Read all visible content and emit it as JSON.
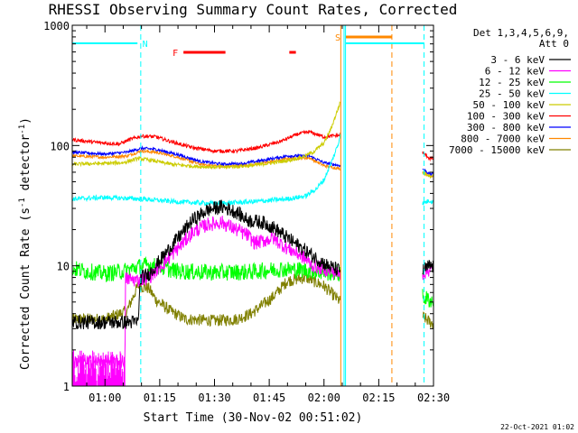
{
  "chart_data": {
    "type": "line",
    "title": "RHESSI Observing Summary Count Rates, Corrected",
    "xlabel": "Start Time (30-Nov-02 00:51:02)",
    "ylabel": "Corrected Count Rate (s-1 detector-1)",
    "ylabel_parts": [
      "Corrected Count Rate (s",
      "-1",
      " detector",
      "-1",
      ")"
    ],
    "yscale": "log",
    "ylim": [
      1,
      1000
    ],
    "xlim": [
      "00:51:02",
      "02:30:00"
    ],
    "xtick_labels": [
      {
        "t": 60,
        "label": "01:00"
      },
      {
        "t": 75,
        "label": "01:15"
      },
      {
        "t": 90,
        "label": "01:30"
      },
      {
        "t": 105,
        "label": "01:45"
      },
      {
        "t": 120,
        "label": "02:00"
      },
      {
        "t": 135,
        "label": "02:15"
      },
      {
        "t": 150,
        "label": "02:30"
      }
    ],
    "ytick_labels": [
      {
        "v": 1,
        "label": "1"
      },
      {
        "v": 10,
        "label": "10"
      },
      {
        "v": 100,
        "label": "100"
      },
      {
        "v": 1000,
        "label": "1000"
      }
    ],
    "detectors": "Det 1,3,4,5,6,9,",
    "attenuator": "Att 0",
    "legend_position": "top-right",
    "footer": "22-Oct-2021 01:02",
    "gap": {
      "start": "02:08:30",
      "end": "02:26:30"
    },
    "series": [
      {
        "name": "3 - 6 keV",
        "color": "#000000",
        "noise": 0.06,
        "points": [
          [
            51,
            3.4
          ],
          [
            69,
            3.4
          ],
          [
            69.8,
            8.0
          ],
          [
            72,
            8.5
          ],
          [
            76,
            12
          ],
          [
            80,
            17
          ],
          [
            84,
            24
          ],
          [
            88,
            29
          ],
          [
            92,
            31
          ],
          [
            96,
            28
          ],
          [
            99,
            24
          ],
          [
            103,
            23
          ],
          [
            106,
            21
          ],
          [
            110,
            17
          ],
          [
            114,
            14
          ],
          [
            117,
            12
          ],
          [
            119,
            11
          ],
          [
            121,
            10
          ],
          [
            123,
            9.5
          ],
          [
            124.5,
            9
          ]
        ],
        "post": [
          [
            147,
            9
          ],
          [
            149,
            10
          ],
          [
            150,
            9.8
          ]
        ]
      },
      {
        "name": "6 - 12 keV",
        "color": "#ff00ff",
        "noise": 0.06,
        "points": [
          [
            51,
            1.6
          ],
          [
            65.5,
            1.6
          ],
          [
            65.6,
            7.8
          ],
          [
            69,
            7.6
          ],
          [
            72,
            8
          ],
          [
            76,
            10.5
          ],
          [
            80,
            14
          ],
          [
            84,
            19
          ],
          [
            88,
            22
          ],
          [
            92,
            23
          ],
          [
            96,
            20
          ],
          [
            99,
            18
          ],
          [
            101,
            15.5
          ],
          [
            103,
            16
          ],
          [
            106,
            17
          ],
          [
            110,
            14
          ],
          [
            114,
            12
          ],
          [
            117,
            10
          ],
          [
            120,
            9.5
          ],
          [
            124.5,
            8.5
          ]
        ],
        "post": [
          [
            147,
            8.6
          ],
          [
            149,
            9.4
          ],
          [
            150,
            9.2
          ]
        ]
      },
      {
        "name": "12 - 25 keV",
        "color": "#00ff00",
        "noise": 0.07,
        "points": [
          [
            51,
            9.5
          ],
          [
            55,
            9.0
          ],
          [
            60,
            8.6
          ],
          [
            65,
            9.0
          ],
          [
            69,
            9.8
          ],
          [
            72,
            10.2
          ],
          [
            76,
            9.6
          ],
          [
            80,
            9.0
          ],
          [
            90,
            8.8
          ],
          [
            100,
            8.9
          ],
          [
            108,
            9.4
          ],
          [
            115,
            9.2
          ],
          [
            120,
            8.8
          ],
          [
            124.5,
            8.6
          ]
        ],
        "post": [
          [
            147,
            5.5
          ],
          [
            149,
            5.2
          ],
          [
            150,
            5.0
          ]
        ]
      },
      {
        "name": "25 - 50 keV",
        "color": "#00ffff",
        "noise": 0.02,
        "points": [
          [
            51,
            36
          ],
          [
            60,
            37
          ],
          [
            70,
            36
          ],
          [
            80,
            34
          ],
          [
            90,
            33
          ],
          [
            100,
            34
          ],
          [
            110,
            36
          ],
          [
            115,
            38
          ],
          [
            118,
            44
          ],
          [
            120,
            52
          ],
          [
            122,
            72
          ],
          [
            124,
            105
          ],
          [
            124.5,
            130
          ]
        ],
        "post": [
          [
            147,
            33
          ],
          [
            149,
            35
          ],
          [
            150,
            34
          ]
        ]
      },
      {
        "name": "50 - 100 keV",
        "color": "#cccc00",
        "noise": 0.015,
        "points": [
          [
            51,
            70
          ],
          [
            60,
            71
          ],
          [
            65,
            72
          ],
          [
            69,
            78
          ],
          [
            72,
            76
          ],
          [
            78,
            70
          ],
          [
            85,
            67
          ],
          [
            92,
            66
          ],
          [
            100,
            68
          ],
          [
            106,
            72
          ],
          [
            110,
            75
          ],
          [
            114,
            80
          ],
          [
            117,
            88
          ],
          [
            120,
            105
          ],
          [
            122,
            140
          ],
          [
            124.5,
            230
          ]
        ],
        "post": [
          [
            147,
            60
          ],
          [
            149,
            56
          ],
          [
            150,
            56
          ]
        ]
      },
      {
        "name": "100 - 300 keV",
        "color": "#ff0000",
        "noise": 0.015,
        "points": [
          [
            51,
            112
          ],
          [
            58,
            106
          ],
          [
            64,
            103
          ],
          [
            66,
            110
          ],
          [
            70,
            120
          ],
          [
            74,
            118
          ],
          [
            78,
            108
          ],
          [
            84,
            96
          ],
          [
            90,
            90
          ],
          [
            96,
            90
          ],
          [
            102,
            96
          ],
          [
            108,
            108
          ],
          [
            113,
            125
          ],
          [
            116,
            130
          ],
          [
            120,
            118
          ],
          [
            124.5,
            122
          ]
        ],
        "post": [
          [
            147,
            88
          ],
          [
            149,
            78
          ],
          [
            150,
            78
          ]
        ]
      },
      {
        "name": "300 - 800 keV",
        "color": "#0000ff",
        "noise": 0.012,
        "points": [
          [
            51,
            88
          ],
          [
            60,
            85
          ],
          [
            66,
            88
          ],
          [
            70,
            95
          ],
          [
            74,
            93
          ],
          [
            80,
            84
          ],
          [
            86,
            74
          ],
          [
            92,
            70
          ],
          [
            98,
            71
          ],
          [
            104,
            76
          ],
          [
            110,
            82
          ],
          [
            116,
            82
          ],
          [
            120,
            72
          ],
          [
            124.5,
            68
          ]
        ],
        "post": [
          [
            147,
            64
          ],
          [
            149,
            58
          ],
          [
            150,
            58
          ]
        ]
      },
      {
        "name": "800 - 7000 keV",
        "color": "#ff8800",
        "noise": 0.012,
        "points": [
          [
            51,
            82
          ],
          [
            60,
            80
          ],
          [
            66,
            82
          ],
          [
            70,
            90
          ],
          [
            74,
            88
          ],
          [
            80,
            80
          ],
          [
            86,
            70
          ],
          [
            92,
            67
          ],
          [
            98,
            68
          ],
          [
            104,
            72
          ],
          [
            110,
            78
          ],
          [
            116,
            79
          ],
          [
            120,
            68
          ],
          [
            124.5,
            64
          ]
        ],
        "post": [
          [
            147,
            60
          ],
          [
            149,
            56
          ],
          [
            150,
            56
          ]
        ]
      },
      {
        "name": "7000 - 15000 keV",
        "color": "#808000",
        "noise": 0.05,
        "points": [
          [
            51,
            3.6
          ],
          [
            60,
            3.6
          ],
          [
            66,
            4.2
          ],
          [
            69,
            6.8
          ],
          [
            72,
            6.5
          ],
          [
            74,
            5.2
          ],
          [
            78,
            4.2
          ],
          [
            82,
            3.6
          ],
          [
            90,
            3.5
          ],
          [
            96,
            3.6
          ],
          [
            100,
            4.0
          ],
          [
            106,
            5.5
          ],
          [
            110,
            7.5
          ],
          [
            115,
            8.0
          ],
          [
            120,
            6.8
          ],
          [
            124.5,
            5.0
          ]
        ],
        "post": [
          [
            147,
            3.8
          ],
          [
            149,
            3.4
          ],
          [
            150,
            3.3
          ]
        ]
      }
    ],
    "bars": [
      {
        "label": "N",
        "color": "#00ffff",
        "t_start": 51,
        "t_end": 68.9,
        "t_end_label": 69.5,
        "level": "top"
      },
      {
        "label": "F",
        "color": "#ff0000",
        "t_start": 81.5,
        "t_end": 93.0,
        "level": "mid"
      },
      {
        "label": "",
        "color": "#ff0000",
        "t_start": 110.5,
        "t_end": 112.3,
        "level": "mid"
      },
      {
        "label": "S",
        "color": "#ff8800",
        "t_start": 126.0,
        "t_end": 138.5,
        "level": "low"
      },
      {
        "label": "",
        "color": "#00ffff",
        "t_start": 126.0,
        "t_end": 147.5,
        "level": "top"
      }
    ],
    "markers": [
      {
        "t": 69.8,
        "color": "#00ffff",
        "dash": true
      },
      {
        "t": 124.6,
        "color": "#ff8800",
        "dash": false
      },
      {
        "t": 125.5,
        "color": "#00ffff",
        "dash": false
      },
      {
        "t": 125.9,
        "color": "#00ffff",
        "dash": false
      },
      {
        "t": 138.6,
        "color": "#ff8800",
        "dash": true
      },
      {
        "t": 147.4,
        "color": "#00ffff",
        "dash": true
      }
    ]
  }
}
